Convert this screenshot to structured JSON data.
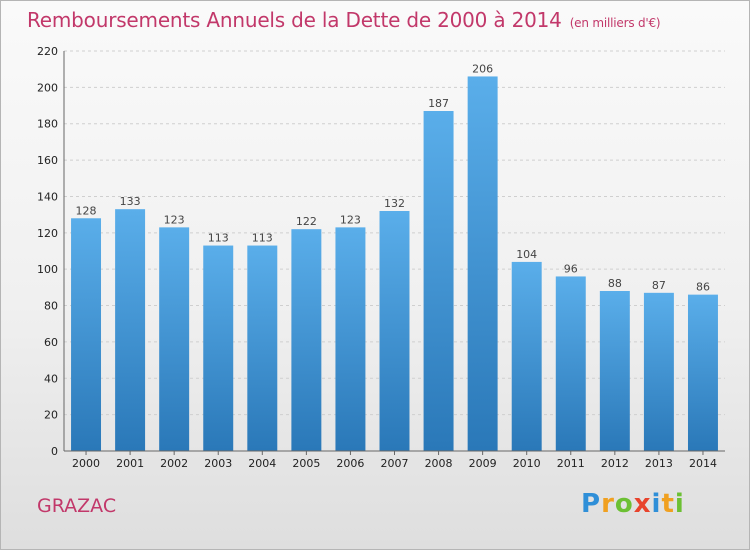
{
  "title": "Remboursements Annuels de la Dette de 2000 à 2014",
  "subtitle": "(en milliers d'€)",
  "city": "GRAZAC",
  "logo": {
    "letters": [
      {
        "char": "P",
        "color": "#2f8fd8"
      },
      {
        "char": "r",
        "color": "#f0a020"
      },
      {
        "char": "o",
        "color": "#6cc033"
      },
      {
        "char": "x",
        "color": "#e8432c"
      },
      {
        "char": "i",
        "color": "#2f8fd8"
      },
      {
        "char": "t",
        "color": "#f0a020"
      },
      {
        "char": "i",
        "color": "#6cc033"
      }
    ]
  },
  "colors": {
    "bar_top": "#5aaeea",
    "bar_bottom": "#2a78b8",
    "accent": "#c2386a",
    "grid": "#cfcfcf"
  },
  "chart_data": {
    "type": "bar",
    "categories": [
      "2000",
      "2001",
      "2002",
      "2003",
      "2004",
      "2005",
      "2006",
      "2007",
      "2008",
      "2009",
      "2010",
      "2011",
      "2012",
      "2013",
      "2014"
    ],
    "values": [
      128,
      133,
      123,
      113,
      113,
      122,
      123,
      132,
      187,
      206,
      104,
      96,
      88,
      87,
      86
    ],
    "ylim": [
      0,
      220
    ],
    "yticks": [
      0,
      20,
      40,
      60,
      80,
      100,
      120,
      140,
      160,
      180,
      200,
      220
    ],
    "grid": true
  }
}
